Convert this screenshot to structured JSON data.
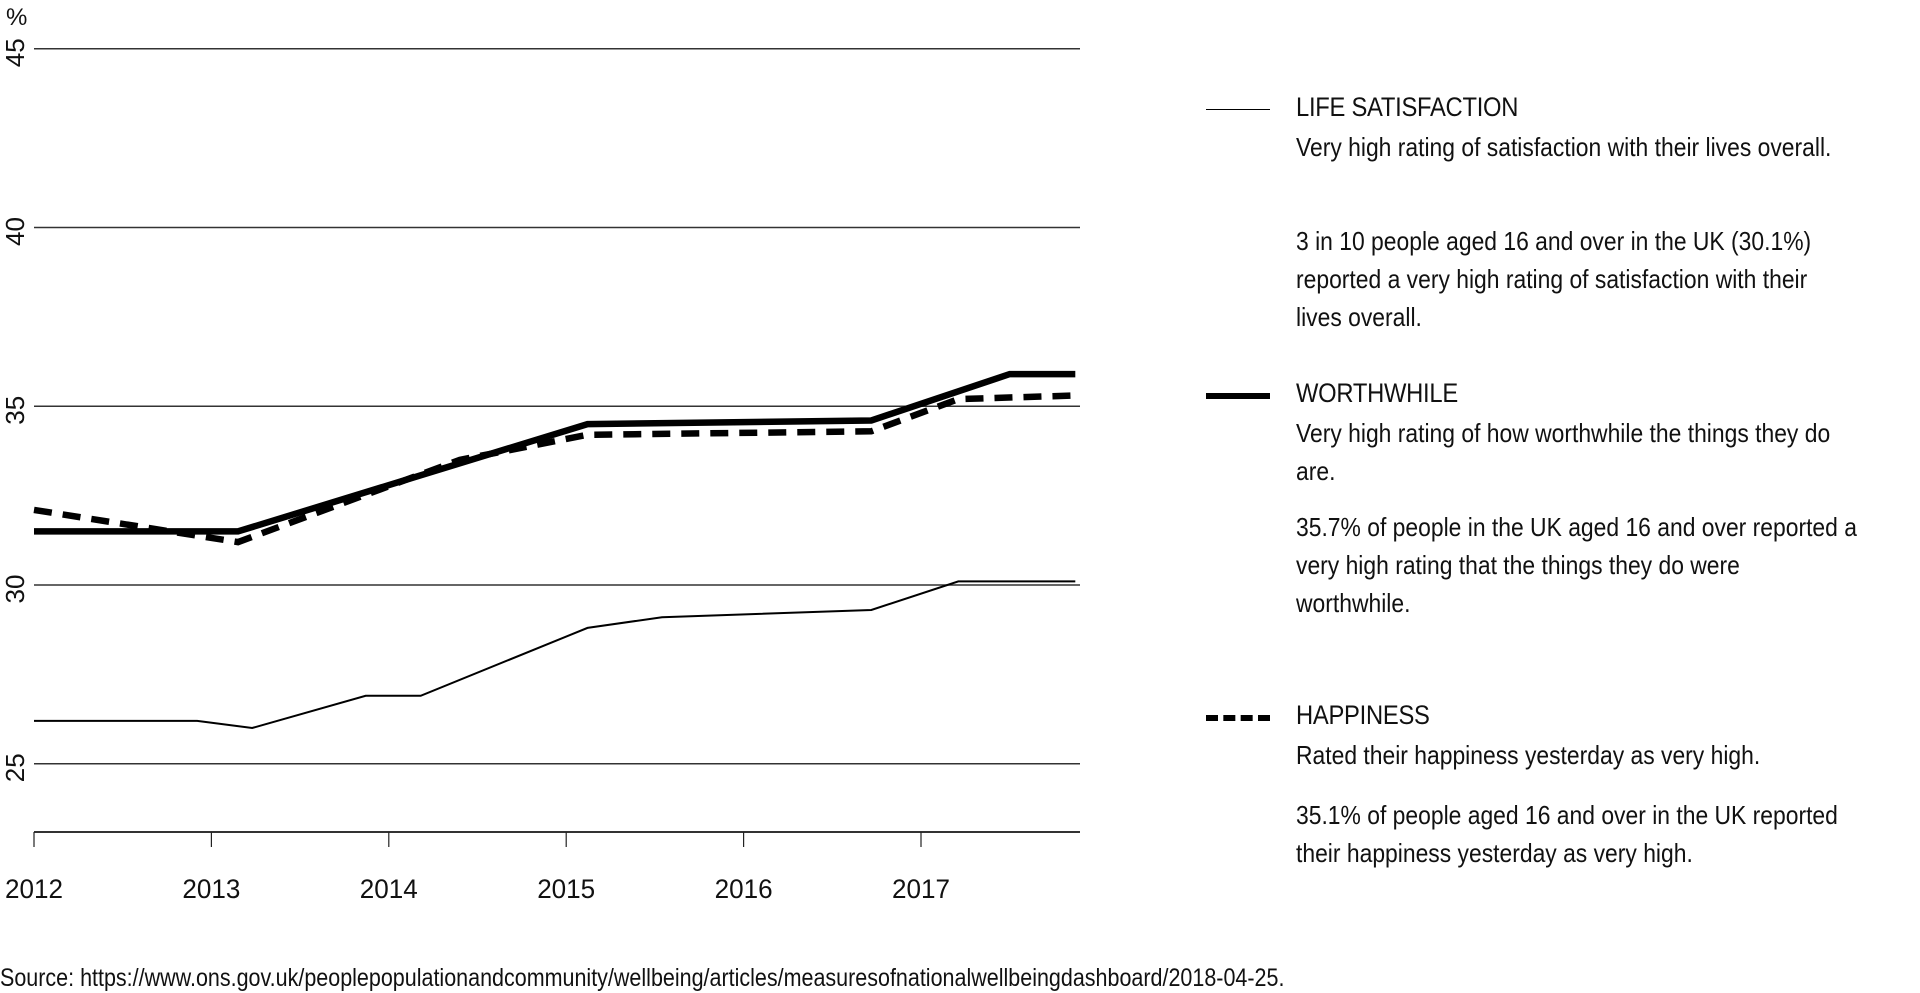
{
  "chart_data": {
    "type": "line",
    "title": "",
    "xlabel": "",
    "ylabel": "%",
    "ylim": [
      23.1,
      45
    ],
    "yticks": [
      25,
      30,
      35,
      40,
      45
    ],
    "xticks": [
      "2012",
      "2013",
      "2014",
      "2015",
      "2016",
      "2017"
    ],
    "grid": true,
    "legend_position": "right",
    "series": [
      {
        "name": "LIFE SATISFACTION",
        "style": "thin-solid",
        "x": [
          2012.0,
          2012.92,
          2013.23,
          2013.87,
          2014.18,
          2015.12,
          2015.54,
          2016.72,
          2017.21,
          2017.87
        ],
        "values": [
          26.2,
          26.2,
          26.0,
          26.9,
          26.9,
          28.8,
          29.1,
          29.3,
          30.1,
          30.1
        ]
      },
      {
        "name": "WORTHWHILE",
        "style": "thick-solid",
        "x": [
          2012.0,
          2013.15,
          2015.12,
          2016.72,
          2017.5,
          2017.87
        ],
        "values": [
          31.5,
          31.5,
          34.5,
          34.6,
          35.9,
          35.9
        ]
      },
      {
        "name": "HAPPINESS",
        "style": "thick-dashed",
        "x": [
          2012.0,
          2013.15,
          2014.4,
          2015.12,
          2016.72,
          2017.21,
          2017.87
        ],
        "values": [
          32.1,
          31.2,
          33.5,
          34.2,
          34.3,
          35.2,
          35.3
        ]
      }
    ]
  },
  "axis": {
    "y_unit": "%",
    "y_labels": [
      "45",
      "40",
      "35",
      "30",
      "25"
    ],
    "x_labels": [
      "2012",
      "2013",
      "2014",
      "2015",
      "2016",
      "2017"
    ]
  },
  "legend": {
    "life": {
      "title": "LIFE SATISFACTION",
      "desc": "Very high rating of satisfaction with their lives overall.",
      "stat": "3 in 10 people aged 16 and over in the UK (30.1%) reported a very high rating of satisfaction with their lives overall."
    },
    "worthwhile": {
      "title": "WORTHWHILE",
      "desc": "Very high rating of how worthwhile the things they do are.",
      "stat": "35.7% of people in the UK aged 16 and over reported a very high rating that the things they do were worthwhile."
    },
    "happiness": {
      "title": "HAPPINESS",
      "desc": "Rated their happiness yesterday as very high.",
      "stat": "35.1% of people aged 16 and over in the UK reported their happiness yesterday as very high."
    }
  },
  "source": "Source: https://www.ons.gov.uk/peoplepopulationandcommunity/wellbeing/articles/measuresofnationalwellbeingdashboard/2018-04-25.",
  "colors": {
    "line": "#000000",
    "grid": "#333333",
    "text": "#111111",
    "background": "#ffffff"
  }
}
